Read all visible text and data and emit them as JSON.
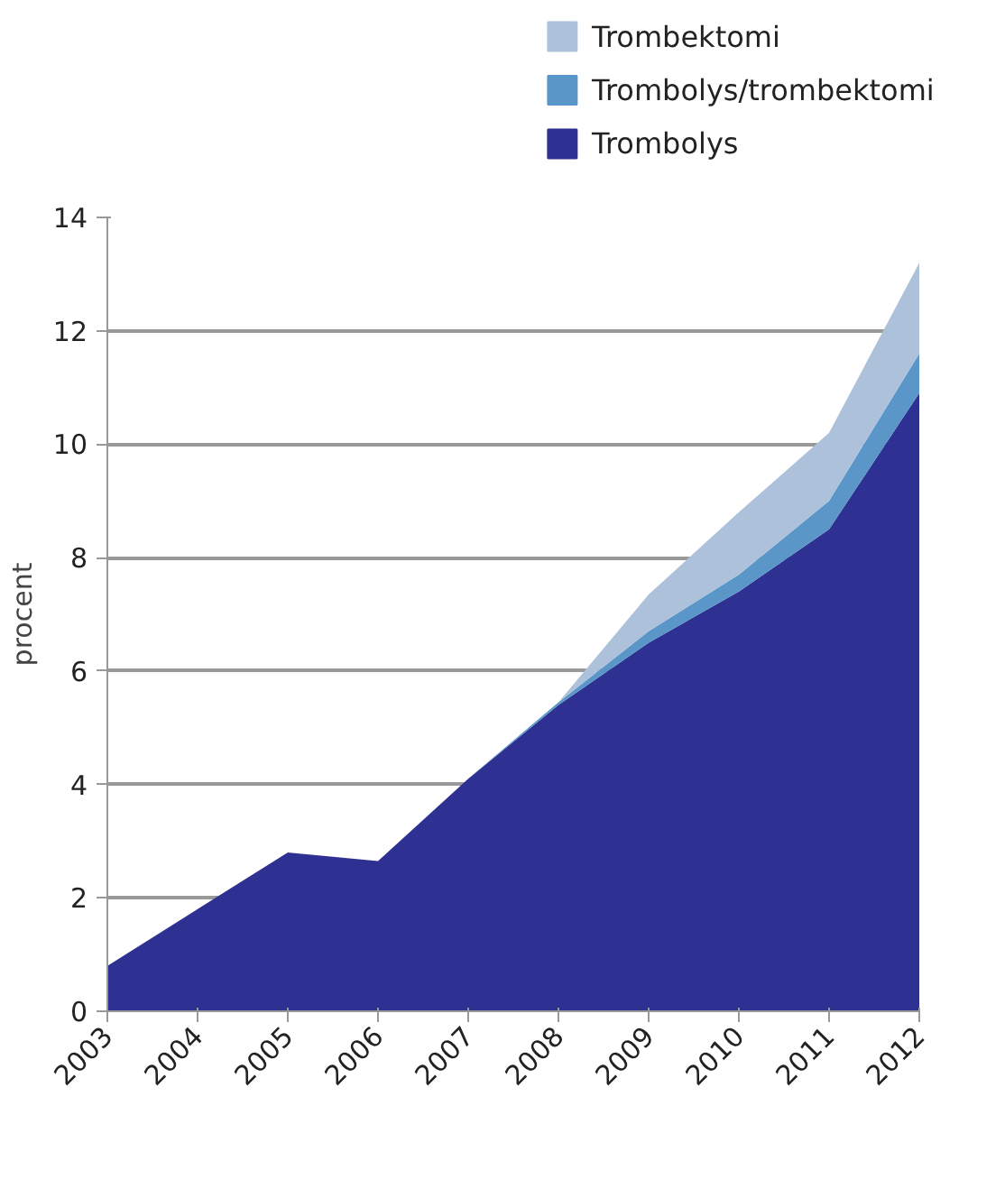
{
  "chart_data": {
    "type": "area",
    "stacked": true,
    "ylabel": "procent",
    "x": [
      2003,
      2004,
      2005,
      2006,
      2007,
      2008,
      2009,
      2010,
      2011,
      2012
    ],
    "series": [
      {
        "name": "Trombolys",
        "color": "#2e3192",
        "values": [
          0.8,
          1.8,
          2.8,
          2.65,
          4.1,
          5.4,
          6.5,
          7.4,
          8.5,
          10.9
        ]
      },
      {
        "name": "Trombolys/trombektomi",
        "color": "#5a96c8",
        "values": [
          0,
          0,
          0,
          0,
          0,
          0.05,
          0.2,
          0.3,
          0.5,
          0.7
        ]
      },
      {
        "name": "Trombektomi",
        "color": "#adc2da",
        "values": [
          0,
          0,
          0,
          0,
          0,
          0,
          0.65,
          1.1,
          1.2,
          1.6
        ]
      }
    ],
    "xlim": [
      2003,
      2012
    ],
    "xticks": [
      2003,
      2004,
      2005,
      2006,
      2007,
      2008,
      2009,
      2010,
      2011,
      2012
    ],
    "ylim": [
      0,
      14
    ],
    "yticks": [
      0,
      2,
      4,
      6,
      8,
      10,
      12,
      14
    ],
    "grid": "y",
    "legend": "top right"
  }
}
